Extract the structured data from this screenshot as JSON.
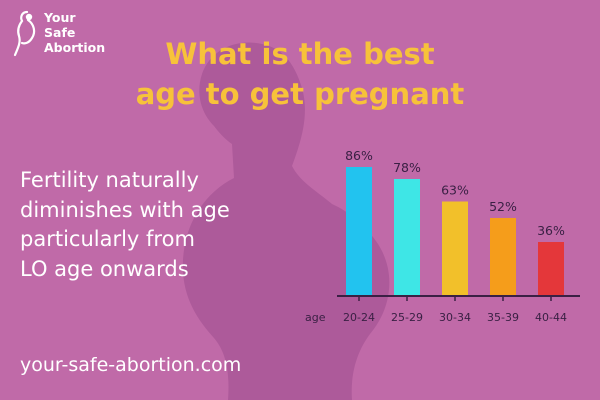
{
  "brand": {
    "line1": "Your",
    "line2": "Safe",
    "line3": "Abortion"
  },
  "headline": {
    "line1": "What is the best",
    "line2": "age to get pregnant"
  },
  "body": {
    "line1": "Fertility naturally",
    "line2": "diminishes with age",
    "line3": "particularly from",
    "line4": "LO age onwards"
  },
  "footer": {
    "url": "your-safe-abortion.com"
  },
  "colors": {
    "background": "#c06aa8",
    "headline": "#f7c23a",
    "text": "#ffffff",
    "axis": "#3a2044"
  },
  "chart_data": {
    "type": "bar",
    "xlabel": "age",
    "categories": [
      "20-24",
      "25-29",
      "30-34",
      "35-39",
      "40-44"
    ],
    "values": [
      86,
      78,
      63,
      52,
      36
    ],
    "value_labels": [
      "86%",
      "78%",
      "63%",
      "52%",
      "36%"
    ],
    "colors": [
      "#22c3ef",
      "#3ee6e6",
      "#f2c02a",
      "#f59d1b",
      "#e4373a"
    ],
    "ylim": [
      0,
      100
    ],
    "grid": false,
    "legend": "none"
  }
}
